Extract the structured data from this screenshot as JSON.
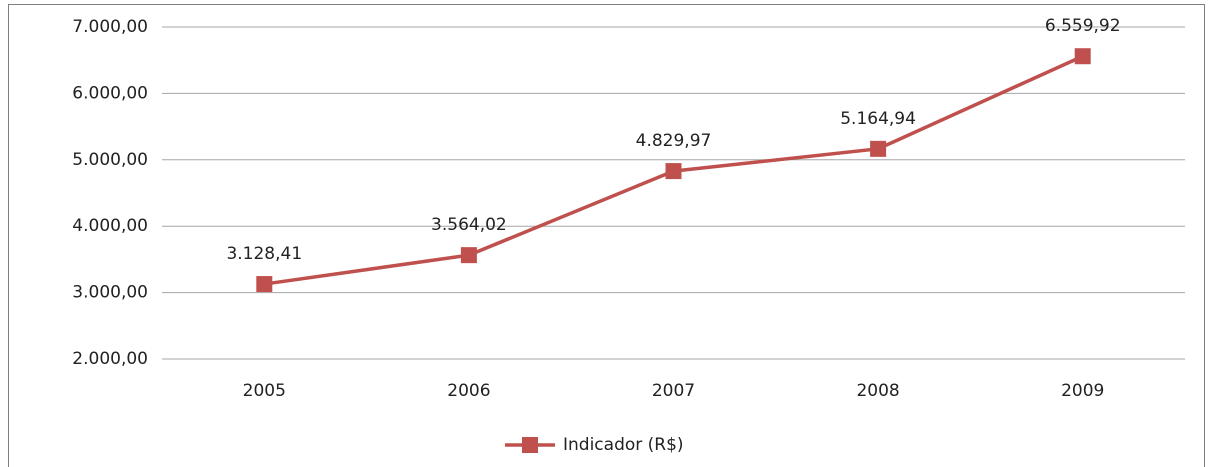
{
  "chart_data": {
    "type": "line",
    "categories": [
      "2005",
      "2006",
      "2007",
      "2008",
      "2009"
    ],
    "series": [
      {
        "name": "Indicador (R$)",
        "color": "#c0504d",
        "values": [
          3128.41,
          3564.02,
          4829.97,
          5164.94,
          6559.92
        ],
        "value_labels": [
          "3.128,41",
          "3.564,02",
          "4.829,97",
          "5.164,94",
          "6.559,92"
        ]
      }
    ],
    "ylim": [
      2000,
      7000
    ],
    "yticks": [
      {
        "value": 2000,
        "label": "2.000,00"
      },
      {
        "value": 3000,
        "label": "3.000,00"
      },
      {
        "value": 4000,
        "label": "4.000,00"
      },
      {
        "value": 5000,
        "label": "5.000,00"
      },
      {
        "value": 6000,
        "label": "6.000,00"
      },
      {
        "value": 7000,
        "label": "7.000,00"
      }
    ],
    "grid": true,
    "legend": "bottom"
  }
}
